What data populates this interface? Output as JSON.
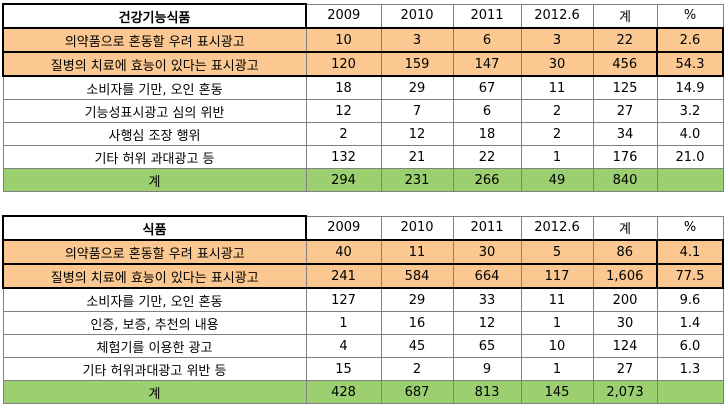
{
  "tables": [
    {
      "header": [
        "건강기능식품",
        "2009",
        "2010",
        "2011",
        "2012.6",
        "계",
        "%"
      ],
      "rows": [
        [
          "의약품으로 혼동할 우려 표시광고",
          "10",
          "3",
          "6",
          "3",
          "22",
          "2.6"
        ],
        [
          "질병의 치료에 효능이 있다는 표시광고",
          "120",
          "159",
          "147",
          "30",
          "456",
          "54.3"
        ],
        [
          "소비자를 기만, 오인 혼동",
          "18",
          "29",
          "67",
          "11",
          "125",
          "14.9"
        ],
        [
          "기능성표시광고 심의 위반",
          "12",
          "7",
          "6",
          "2",
          "27",
          "3.2"
        ],
        [
          "사행심 조장 행위",
          "2",
          "12",
          "18",
          "2",
          "34",
          "4.0"
        ],
        [
          "기타 허위 과대광고 등",
          "132",
          "21",
          "22",
          "1",
          "176",
          "21.0"
        ]
      ],
      "total": [
        "계",
        "294",
        "231",
        "266",
        "49",
        "840"
      ]
    },
    {
      "header": [
        "식품",
        "2009",
        "2010",
        "2011",
        "2012.6",
        "계",
        "%"
      ],
      "rows": [
        [
          "의약품으로 혼동할 우려 표시광고",
          "40",
          "11",
          "30",
          "5",
          "86",
          "4.1"
        ],
        [
          "질병의 치료에 효능이 있다는 표시광고",
          "241",
          "584",
          "664",
          "117",
          "1,606",
          "77.5"
        ],
        [
          "소비자를 기만, 오인 혼동",
          "127",
          "29",
          "33",
          "11",
          "200",
          "9.6"
        ],
        [
          "인증, 보증, 추천의 내용",
          "1",
          "16",
          "12",
          "1",
          "30",
          "1.4"
        ],
        [
          "체험기를 이용한 광고",
          "4",
          "45",
          "65",
          "10",
          "124",
          "6.0"
        ],
        [
          "기타 허위과대광고 위반 등",
          "15",
          "2",
          "9",
          "1",
          "27",
          "1.3"
        ]
      ],
      "total": [
        "계",
        "428",
        "687",
        "813",
        "145",
        "2,073"
      ]
    }
  ]
}
